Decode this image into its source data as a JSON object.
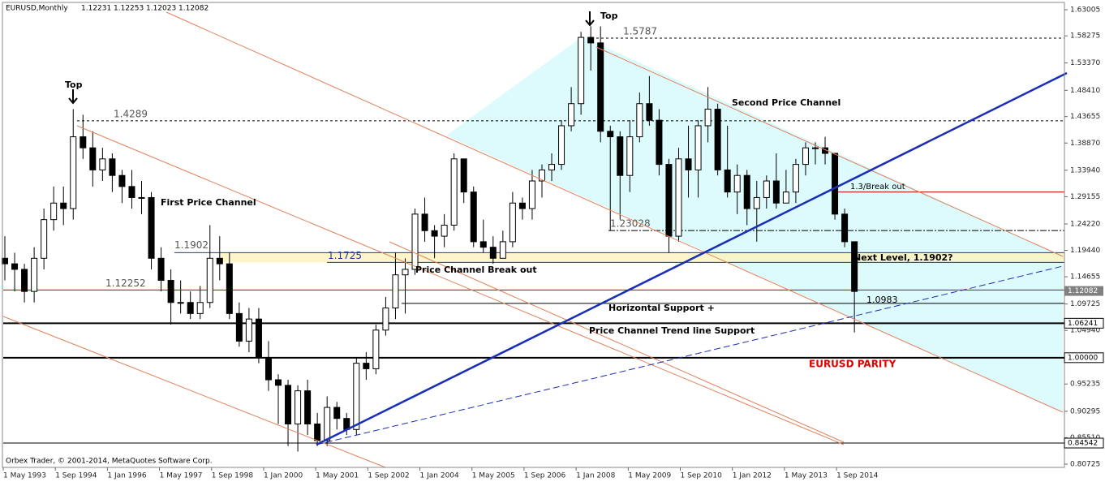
{
  "chart_data": {
    "type": "candlestick",
    "title": "EURUSD,Monthly",
    "last_ohlc": [
      1.12231,
      1.12253,
      1.12023,
      1.12082
    ],
    "footer": "Orbex Trader, © 2001-2014, MetaQuotes Software Corp.",
    "ylim": [
      0.80725,
      1.63005
    ],
    "yticks": [
      {
        "value": 1.63005,
        "label": "1.63005"
      },
      {
        "value": 1.58275,
        "label": "1.58275"
      },
      {
        "value": 1.5337,
        "label": "1.53370"
      },
      {
        "value": 1.4841,
        "label": "1.48410"
      },
      {
        "value": 1.43655,
        "label": "1.43655"
      },
      {
        "value": 1.3887,
        "label": "1.38870"
      },
      {
        "value": 1.3394,
        "label": "1.33940"
      },
      {
        "value": 1.29155,
        "label": "1.29155"
      },
      {
        "value": 1.2422,
        "label": "1.24220"
      },
      {
        "value": 1.1944,
        "label": "1.19440"
      },
      {
        "value": 1.14655,
        "label": "1.14655"
      },
      {
        "value": 1.09725,
        "label": "1.09725"
      },
      {
        "value": 1.0494,
        "label": "1.04940"
      },
      {
        "value": 0.95235,
        "label": "0.95235"
      },
      {
        "value": 0.90295,
        "label": "0.90295"
      },
      {
        "value": 0.8551,
        "label": "0.85510"
      },
      {
        "value": 0.80725,
        "label": "0.80725"
      }
    ],
    "xticks": [
      {
        "value": "1993-05",
        "label": "1 May 1993"
      },
      {
        "value": "1994-09",
        "label": "1 Sep 1994"
      },
      {
        "value": "1996-01",
        "label": "1 Jan 1996"
      },
      {
        "value": "1997-05",
        "label": "1 May 1997"
      },
      {
        "value": "1998-09",
        "label": "1 Sep 1998"
      },
      {
        "value": "2000-01",
        "label": "1 Jan 2000"
      },
      {
        "value": "2001-05",
        "label": "1 May 2001"
      },
      {
        "value": "2002-09",
        "label": "1 Sep 2002"
      },
      {
        "value": "2004-01",
        "label": "1 Jan 2004"
      },
      {
        "value": "2005-05",
        "label": "1 May 2005"
      },
      {
        "value": "2006-09",
        "label": "1 Sep 2006"
      },
      {
        "value": "2008-01",
        "label": "1 Jan 2008"
      },
      {
        "value": "2009-05",
        "label": "1 May 2009"
      },
      {
        "value": "2010-09",
        "label": "1 Sep 2010"
      },
      {
        "value": "2012-01",
        "label": "1 Jan 2012"
      },
      {
        "value": "2013-05",
        "label": "1 May 2013"
      },
      {
        "value": "2014-09",
        "label": "1 Sep 2014"
      }
    ],
    "x": [
      "1993-04",
      "1993-07",
      "1993-10",
      "1994-01",
      "1994-04",
      "1994-07",
      "1994-10",
      "1995-01",
      "1995-04",
      "1995-07",
      "1995-10",
      "1996-01",
      "1996-04",
      "1996-07",
      "1996-10",
      "1997-01",
      "1997-04",
      "1997-07",
      "1997-10",
      "1998-01",
      "1998-04",
      "1998-07",
      "1998-10",
      "1999-01",
      "1999-04",
      "1999-07",
      "1999-10",
      "2000-01",
      "2000-04",
      "2000-07",
      "2000-10",
      "2001-01",
      "2001-04",
      "2001-07",
      "2001-10",
      "2002-01",
      "2002-04",
      "2002-07",
      "2002-10",
      "2003-01",
      "2003-04",
      "2003-07",
      "2003-10",
      "2004-01",
      "2004-04",
      "2004-07",
      "2004-10",
      "2005-01",
      "2005-04",
      "2005-07",
      "2005-10",
      "2006-01",
      "2006-04",
      "2006-07",
      "2006-10",
      "2007-01",
      "2007-04",
      "2007-07",
      "2007-10",
      "2008-01",
      "2008-04",
      "2008-07",
      "2008-10",
      "2009-01",
      "2009-04",
      "2009-07",
      "2009-10",
      "2010-01",
      "2010-04",
      "2010-07",
      "2010-10",
      "2011-01",
      "2011-04",
      "2011-07",
      "2011-10",
      "2012-01",
      "2012-04",
      "2012-07",
      "2012-10",
      "2013-01",
      "2013-04",
      "2013-07",
      "2013-10",
      "2014-01",
      "2014-04",
      "2014-07",
      "2014-10",
      "2015-01"
    ],
    "open": [
      1.18,
      1.17,
      1.16,
      1.12,
      1.18,
      1.25,
      1.28,
      1.27,
      1.4,
      1.38,
      1.34,
      1.36,
      1.33,
      1.31,
      1.29,
      1.29,
      1.18,
      1.14,
      1.1,
      1.1,
      1.08,
      1.1,
      1.18,
      1.17,
      1.08,
      1.03,
      1.07,
      1.0,
      0.96,
      0.95,
      0.88,
      0.94,
      0.88,
      0.85,
      0.91,
      0.89,
      0.87,
      0.99,
      0.98,
      1.05,
      1.09,
      1.15,
      1.16,
      1.26,
      1.23,
      1.22,
      1.24,
      1.36,
      1.3,
      1.21,
      1.2,
      1.18,
      1.21,
      1.28,
      1.27,
      1.32,
      1.34,
      1.35,
      1.42,
      1.46,
      1.58,
      1.57,
      1.41,
      1.4,
      1.33,
      1.4,
      1.46,
      1.43,
      1.35,
      1.22,
      1.36,
      1.34,
      1.42,
      1.45,
      1.34,
      1.3,
      1.33,
      1.27,
      1.29,
      1.32,
      1.28,
      1.3,
      1.35,
      1.38,
      1.38,
      1.37,
      1.26,
      1.21
    ],
    "high": [
      1.22,
      1.19,
      1.17,
      1.2,
      1.27,
      1.31,
      1.31,
      1.45,
      1.44,
      1.41,
      1.38,
      1.37,
      1.34,
      1.34,
      1.32,
      1.3,
      1.2,
      1.16,
      1.14,
      1.12,
      1.13,
      1.24,
      1.22,
      1.19,
      1.1,
      1.09,
      1.09,
      1.03,
      0.97,
      0.96,
      0.95,
      0.96,
      0.9,
      0.93,
      0.92,
      0.9,
      1.0,
      1.01,
      1.06,
      1.11,
      1.19,
      1.18,
      1.27,
      1.29,
      1.24,
      1.26,
      1.37,
      1.36,
      1.31,
      1.25,
      1.22,
      1.23,
      1.3,
      1.29,
      1.34,
      1.35,
      1.37,
      1.43,
      1.49,
      1.59,
      1.6,
      1.6,
      1.42,
      1.41,
      1.43,
      1.48,
      1.51,
      1.45,
      1.36,
      1.38,
      1.42,
      1.43,
      1.49,
      1.46,
      1.42,
      1.35,
      1.34,
      1.32,
      1.33,
      1.37,
      1.34,
      1.36,
      1.39,
      1.39,
      1.4,
      1.37,
      1.27,
      1.21
    ],
    "low": [
      1.14,
      1.12,
      1.1,
      1.1,
      1.16,
      1.23,
      1.24,
      1.25,
      1.36,
      1.31,
      1.32,
      1.3,
      1.28,
      1.27,
      1.26,
      1.16,
      1.12,
      1.06,
      1.08,
      1.07,
      1.07,
      1.09,
      1.14,
      1.07,
      1.02,
      1.01,
      0.99,
      0.94,
      0.88,
      0.84,
      0.83,
      0.86,
      0.84,
      0.84,
      0.87,
      0.86,
      0.86,
      0.96,
      0.97,
      1.04,
      1.07,
      1.08,
      1.15,
      1.21,
      1.18,
      1.2,
      1.23,
      1.28,
      1.2,
      1.19,
      1.17,
      1.18,
      1.2,
      1.25,
      1.25,
      1.29,
      1.32,
      1.34,
      1.41,
      1.44,
      1.52,
      1.39,
      1.23,
      1.25,
      1.3,
      1.39,
      1.42,
      1.33,
      1.19,
      1.21,
      1.29,
      1.29,
      1.39,
      1.33,
      1.29,
      1.26,
      1.24,
      1.21,
      1.27,
      1.27,
      1.28,
      1.28,
      1.33,
      1.35,
      1.35,
      1.25,
      1.2,
      1.0457
    ],
    "close": [
      1.17,
      1.16,
      1.12,
      1.18,
      1.25,
      1.28,
      1.27,
      1.4,
      1.38,
      1.34,
      1.36,
      1.33,
      1.31,
      1.29,
      1.29,
      1.18,
      1.14,
      1.1,
      1.1,
      1.08,
      1.1,
      1.18,
      1.17,
      1.08,
      1.03,
      1.07,
      1.0,
      0.96,
      0.95,
      0.88,
      0.94,
      0.88,
      0.85,
      0.91,
      0.89,
      0.87,
      0.99,
      0.98,
      1.05,
      1.09,
      1.15,
      1.16,
      1.26,
      1.23,
      1.22,
      1.24,
      1.36,
      1.3,
      1.21,
      1.2,
      1.18,
      1.21,
      1.28,
      1.27,
      1.32,
      1.34,
      1.35,
      1.42,
      1.46,
      1.58,
      1.57,
      1.41,
      1.4,
      1.33,
      1.4,
      1.46,
      1.43,
      1.35,
      1.22,
      1.36,
      1.34,
      1.42,
      1.45,
      1.34,
      1.3,
      1.33,
      1.27,
      1.29,
      1.32,
      1.28,
      1.3,
      1.35,
      1.38,
      1.38,
      1.37,
      1.26,
      1.21,
      1.12
    ],
    "levels": [
      1.5787,
      1.4289,
      1.3,
      1.23028,
      1.1902,
      1.1725,
      1.12252,
      1.0983,
      1.06241,
      {
        "value": 1,
        "label": "1.00000"
      },
      0.84542
    ],
    "annotations": [
      "Top",
      "Top",
      "First Price Channel",
      "Second Price Channel",
      "1.3/Break out",
      "Next Level, 1.1902?",
      "Price Channel Break out",
      "Horizontal Support +",
      "Price Channel Trend line Support",
      "EURUSD PARITY"
    ]
  }
}
